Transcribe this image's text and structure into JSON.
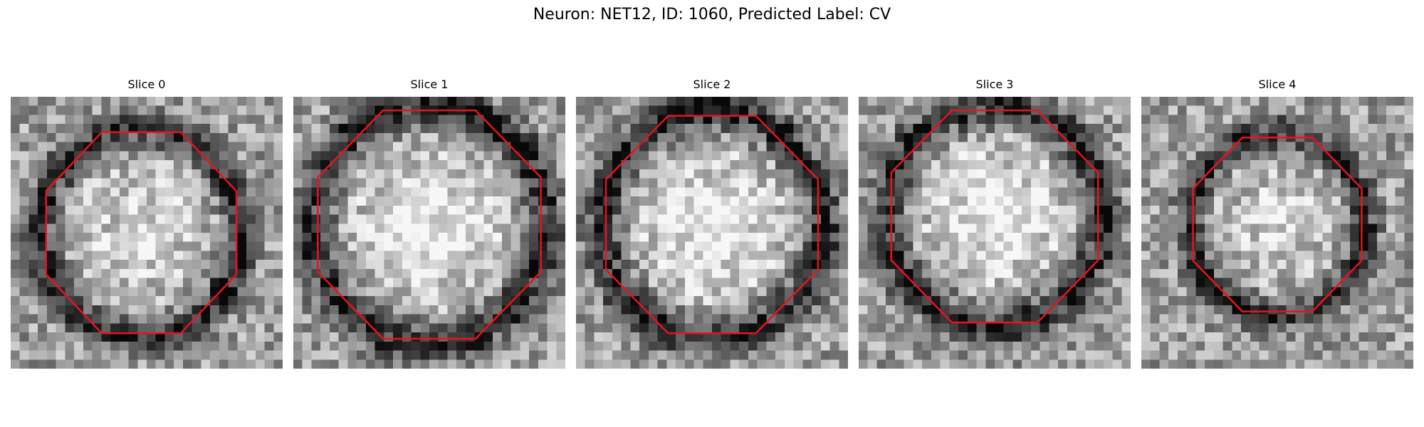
{
  "figure": {
    "title": "Neuron: NET12, ID: 1060, Predicted Label: CV",
    "contour_color": "#e8141c"
  },
  "panels": [
    {
      "title": "Slice 0",
      "seed": 11,
      "center": [
        0.48,
        0.5
      ],
      "radii": [
        0.35,
        0.37
      ],
      "bright": 0.3
    },
    {
      "title": "Slice 1",
      "seed": 23,
      "center": [
        0.5,
        0.47
      ],
      "radii": [
        0.41,
        0.42
      ],
      "bright": 0.4
    },
    {
      "title": "Slice 2",
      "seed": 37,
      "center": [
        0.5,
        0.47
      ],
      "radii": [
        0.39,
        0.4
      ],
      "bright": 0.42
    },
    {
      "title": "Slice 3",
      "seed": 51,
      "center": [
        0.5,
        0.44
      ],
      "radii": [
        0.38,
        0.39
      ],
      "bright": 0.42
    },
    {
      "title": "Slice 4",
      "seed": 67,
      "center": [
        0.5,
        0.47
      ],
      "radii": [
        0.31,
        0.32
      ],
      "bright": 0.28
    }
  ]
}
